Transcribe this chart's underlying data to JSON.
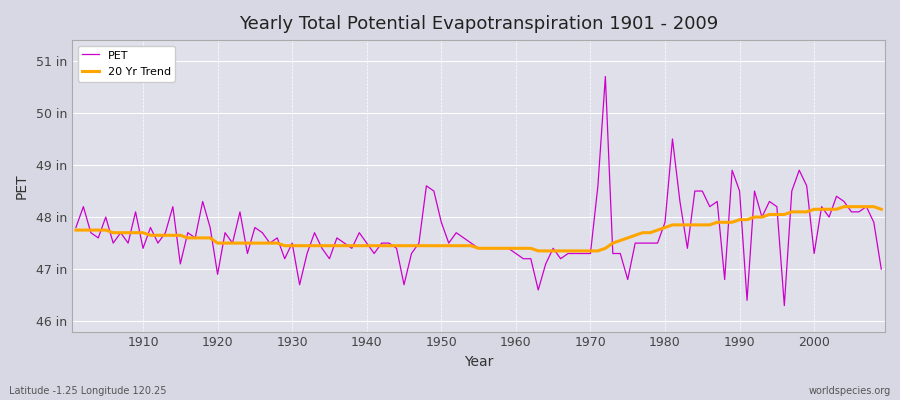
{
  "title": "Yearly Total Potential Evapotranspiration 1901 - 2009",
  "xlabel": "Year",
  "ylabel": "PET",
  "footnote_left": "Latitude -1.25 Longitude 120.25",
  "footnote_right": "worldspecies.org",
  "ylim": [
    45.8,
    51.4
  ],
  "yticks": [
    46,
    47,
    48,
    49,
    50,
    51
  ],
  "ytick_labels": [
    "46 in",
    "47 in",
    "48 in",
    "49 in",
    "50 in",
    "51 in"
  ],
  "xlim": [
    1900.5,
    2009.5
  ],
  "xticks": [
    1910,
    1920,
    1930,
    1940,
    1950,
    1960,
    1970,
    1980,
    1990,
    2000
  ],
  "pet_color": "#cc00cc",
  "trend_color": "#FFA500",
  "bg_color": "#dcdce8",
  "plot_bg": "#e0e0ea",
  "legend_bg": "#ffffff",
  "years": [
    1901,
    1902,
    1903,
    1904,
    1905,
    1906,
    1907,
    1908,
    1909,
    1910,
    1911,
    1912,
    1913,
    1914,
    1915,
    1916,
    1917,
    1918,
    1919,
    1920,
    1921,
    1922,
    1923,
    1924,
    1925,
    1926,
    1927,
    1928,
    1929,
    1930,
    1931,
    1932,
    1933,
    1934,
    1935,
    1936,
    1937,
    1938,
    1939,
    1940,
    1941,
    1942,
    1943,
    1944,
    1945,
    1946,
    1947,
    1948,
    1949,
    1950,
    1951,
    1952,
    1953,
    1954,
    1955,
    1956,
    1957,
    1958,
    1959,
    1960,
    1961,
    1962,
    1963,
    1964,
    1965,
    1966,
    1967,
    1968,
    1969,
    1970,
    1971,
    1972,
    1973,
    1974,
    1975,
    1976,
    1977,
    1978,
    1979,
    1980,
    1981,
    1982,
    1983,
    1984,
    1985,
    1986,
    1987,
    1988,
    1989,
    1990,
    1991,
    1992,
    1993,
    1994,
    1995,
    1996,
    1997,
    1998,
    1999,
    2000,
    2001,
    2002,
    2003,
    2004,
    2005,
    2006,
    2007,
    2008,
    2009
  ],
  "pet_values": [
    47.8,
    48.2,
    47.7,
    47.6,
    48.0,
    47.5,
    47.7,
    47.5,
    48.1,
    47.4,
    47.8,
    47.5,
    47.7,
    48.2,
    47.1,
    47.7,
    47.6,
    48.3,
    47.8,
    46.9,
    47.7,
    47.5,
    48.1,
    47.3,
    47.8,
    47.7,
    47.5,
    47.6,
    47.2,
    47.5,
    46.7,
    47.3,
    47.7,
    47.4,
    47.2,
    47.6,
    47.5,
    47.4,
    47.7,
    47.5,
    47.3,
    47.5,
    47.5,
    47.4,
    46.7,
    47.3,
    47.5,
    48.6,
    48.5,
    47.9,
    47.5,
    47.7,
    47.6,
    47.5,
    47.4,
    47.4,
    47.4,
    47.4,
    47.4,
    47.3,
    47.2,
    47.2,
    46.6,
    47.1,
    47.4,
    47.2,
    47.3,
    47.3,
    47.3,
    47.3,
    48.6,
    50.7,
    47.3,
    47.3,
    46.8,
    47.5,
    47.5,
    47.5,
    47.5,
    47.9,
    49.5,
    48.3,
    47.4,
    48.5,
    48.5,
    48.2,
    48.3,
    46.8,
    48.9,
    48.5,
    46.4,
    48.5,
    48.0,
    48.3,
    48.2,
    46.3,
    48.5,
    48.9,
    48.6,
    47.3,
    48.2,
    48.0,
    48.4,
    48.3,
    48.1,
    48.1,
    48.2,
    47.9,
    47.0
  ],
  "trend_values": [
    47.75,
    47.75,
    47.75,
    47.75,
    47.75,
    47.7,
    47.7,
    47.7,
    47.7,
    47.7,
    47.65,
    47.65,
    47.65,
    47.65,
    47.65,
    47.6,
    47.6,
    47.6,
    47.6,
    47.5,
    47.5,
    47.5,
    47.5,
    47.5,
    47.5,
    47.5,
    47.5,
    47.5,
    47.45,
    47.45,
    47.45,
    47.45,
    47.45,
    47.45,
    47.45,
    47.45,
    47.45,
    47.45,
    47.45,
    47.45,
    47.45,
    47.45,
    47.45,
    47.45,
    47.45,
    47.45,
    47.45,
    47.45,
    47.45,
    47.45,
    47.45,
    47.45,
    47.45,
    47.45,
    47.4,
    47.4,
    47.4,
    47.4,
    47.4,
    47.4,
    47.4,
    47.4,
    47.35,
    47.35,
    47.35,
    47.35,
    47.35,
    47.35,
    47.35,
    47.35,
    47.35,
    47.4,
    47.5,
    47.55,
    47.6,
    47.65,
    47.7,
    47.7,
    47.75,
    47.8,
    47.85,
    47.85,
    47.85,
    47.85,
    47.85,
    47.85,
    47.9,
    47.9,
    47.9,
    47.95,
    47.95,
    48.0,
    48.0,
    48.05,
    48.05,
    48.05,
    48.1,
    48.1,
    48.1,
    48.15,
    48.15,
    48.15,
    48.15,
    48.2,
    48.2,
    48.2,
    48.2,
    48.2,
    48.15
  ]
}
